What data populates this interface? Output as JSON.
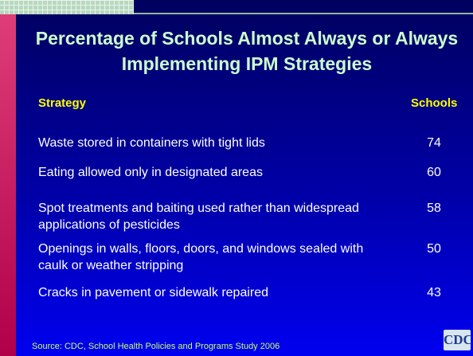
{
  "header": {
    "title": "Percentage of Schools Almost Always or Always Implementing IPM Strategies"
  },
  "table": {
    "columns": [
      "Strategy",
      "Schools"
    ],
    "rows": [
      [
        "Waste stored in containers with tight lids",
        74
      ],
      [
        "Eating allowed only in designated areas",
        60
      ],
      [
        "Spot treatments and baiting used rather than widespread applications of pesticides",
        58
      ],
      [
        "Openings in walls, floors, doors, and windows sealed with caulk or weather stripping",
        50
      ],
      [
        "Cracks in pavement or sidewalk repaired",
        43
      ]
    ]
  },
  "footer": {
    "source": "Source: CDC, School Health Policies and Programs Study 2006",
    "logo": "CDC"
  }
}
